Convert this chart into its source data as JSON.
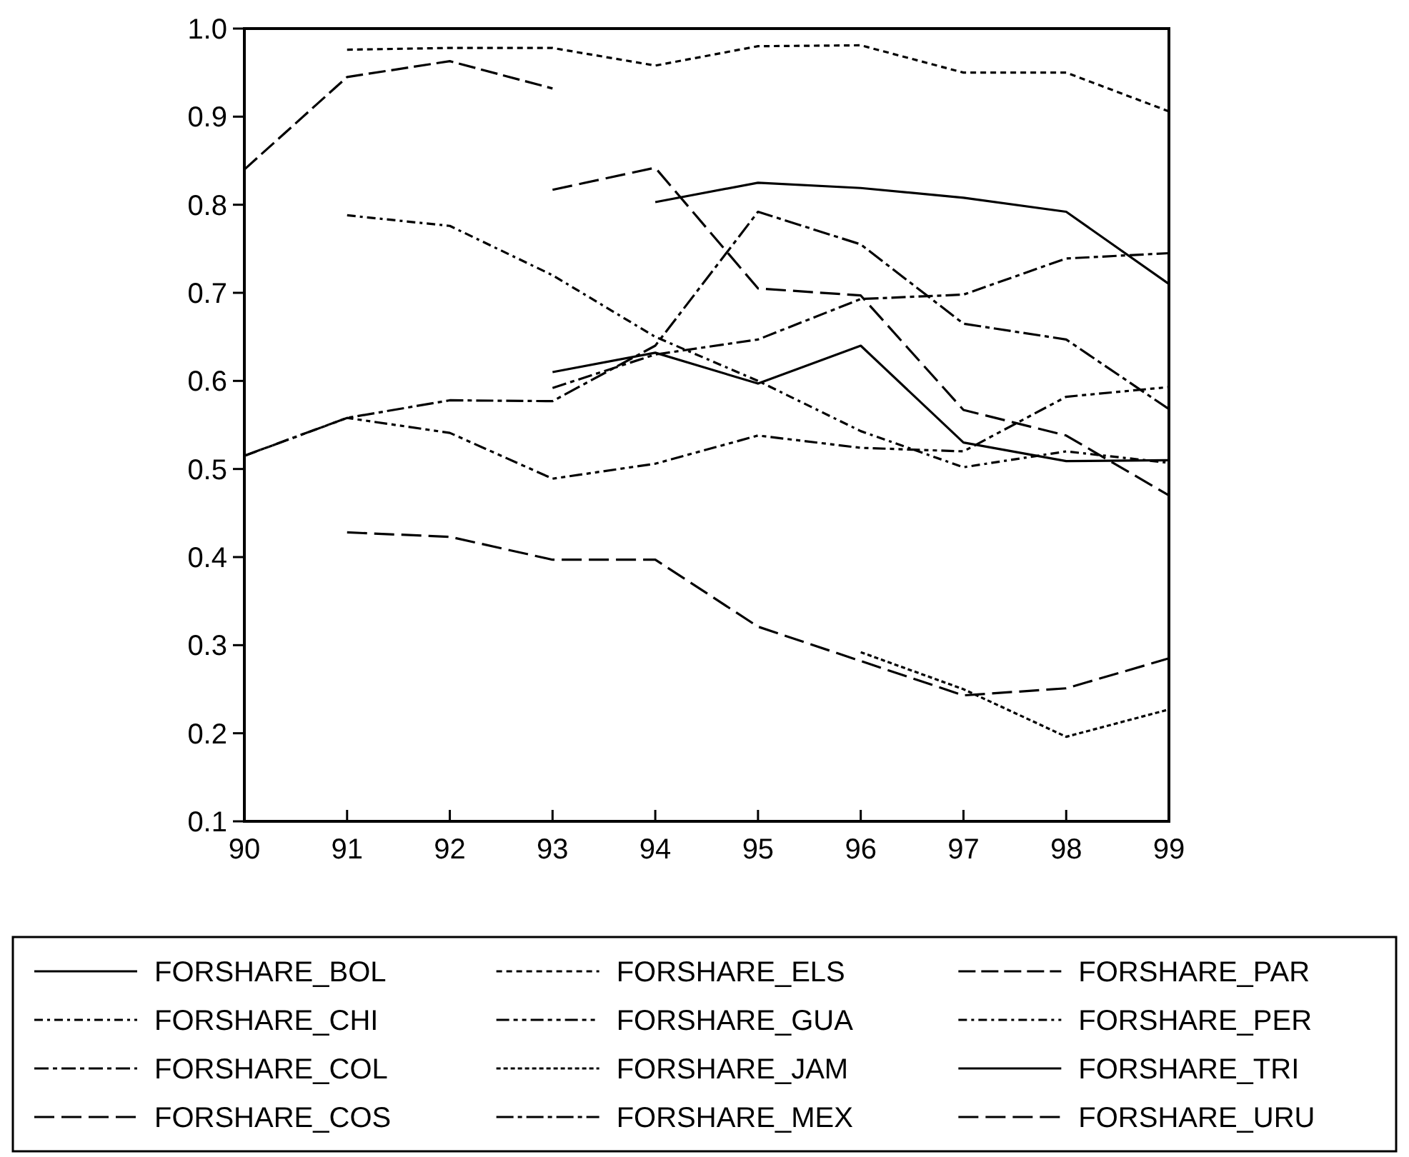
{
  "chart_data": {
    "type": "line",
    "x": [
      90,
      91,
      92,
      93,
      94,
      95,
      96,
      97,
      98,
      99
    ],
    "xlim": [
      90,
      99
    ],
    "xticks": [
      90,
      91,
      92,
      93,
      94,
      95,
      96,
      97,
      98,
      99
    ],
    "ylim": [
      0.1,
      1.0
    ],
    "yticks": [
      0.1,
      0.2,
      0.3,
      0.4,
      0.5,
      0.6,
      0.7,
      0.8,
      0.9,
      {
        "value": 1,
        "label": "1.0"
      }
    ],
    "grid": false,
    "legend": "bottom",
    "marker": "none",
    "series": [
      {
        "name": "FORSHARE_BOL",
        "color": "#000000",
        "line_style": "solid",
        "values": [
          null,
          null,
          null,
          null,
          0.803,
          0.825,
          0.819,
          0.808,
          0.792,
          0.71
        ]
      },
      {
        "name": "FORSHARE_CHI",
        "color": "#000000",
        "line_style": "dashed",
        "values": [
          null,
          0.788,
          0.776,
          0.72,
          0.65,
          0.6,
          0.543,
          0.502,
          0.52,
          0.507
        ]
      },
      {
        "name": "FORSHARE_COL",
        "color": "#000000",
        "line_style": "dashed",
        "values": [
          null,
          null,
          null,
          0.592,
          0.63,
          0.647,
          0.693,
          0.698,
          0.739,
          0.745
        ]
      },
      {
        "name": "FORSHARE_COS",
        "color": "#000000",
        "line_style": "dashed",
        "values": [
          null,
          null,
          null,
          0.817,
          0.842,
          0.705,
          0.697,
          0.567,
          0.538,
          0.47
        ]
      },
      {
        "name": "FORSHARE_ELS",
        "color": "#000000",
        "line_style": "dashed",
        "values": [
          null,
          0.976,
          0.978,
          0.978,
          0.958,
          0.98,
          0.981,
          0.95,
          0.95,
          0.906
        ]
      },
      {
        "name": "FORSHARE_GUA",
        "color": "#000000",
        "line_style": "dashed",
        "values": [
          0.515,
          0.558,
          0.541,
          0.489,
          0.506,
          0.538,
          0.524,
          0.52,
          0.582,
          0.593
        ]
      },
      {
        "name": "FORSHARE_JAM",
        "color": "#000000",
        "line_style": "dashed",
        "values": [
          null,
          null,
          null,
          null,
          null,
          null,
          0.292,
          0.25,
          0.196,
          0.227
        ]
      },
      {
        "name": "FORSHARE_MEX",
        "color": "#000000",
        "line_style": "dashed",
        "values": [
          0.515,
          0.558,
          0.578,
          0.577,
          0.64,
          0.792,
          0.755,
          0.665,
          0.647,
          0.568
        ]
      },
      {
        "name": "FORSHARE_PAR",
        "color": "#000000",
        "line_style": "dashed",
        "values": [
          0.84,
          0.945,
          0.963,
          0.932,
          null,
          null,
          null,
          null,
          null,
          null
        ]
      },
      {
        "name": "FORSHARE_PER",
        "color": "#000000",
        "line_style": "dashed",
        "values": [
          null,
          null,
          null,
          null,
          null,
          null,
          null,
          null,
          null,
          null
        ]
      },
      {
        "name": "FORSHARE_TRI",
        "color": "#000000",
        "line_style": "solid",
        "values": [
          null,
          null,
          null,
          0.61,
          0.632,
          0.597,
          0.64,
          0.53,
          0.509,
          0.51
        ]
      },
      {
        "name": "FORSHARE_URU",
        "color": "#000000",
        "line_style": "dashed",
        "values": [
          null,
          0.428,
          0.423,
          0.397,
          0.397,
          0.321,
          0.282,
          0.243,
          0.251,
          0.285
        ]
      }
    ]
  }
}
